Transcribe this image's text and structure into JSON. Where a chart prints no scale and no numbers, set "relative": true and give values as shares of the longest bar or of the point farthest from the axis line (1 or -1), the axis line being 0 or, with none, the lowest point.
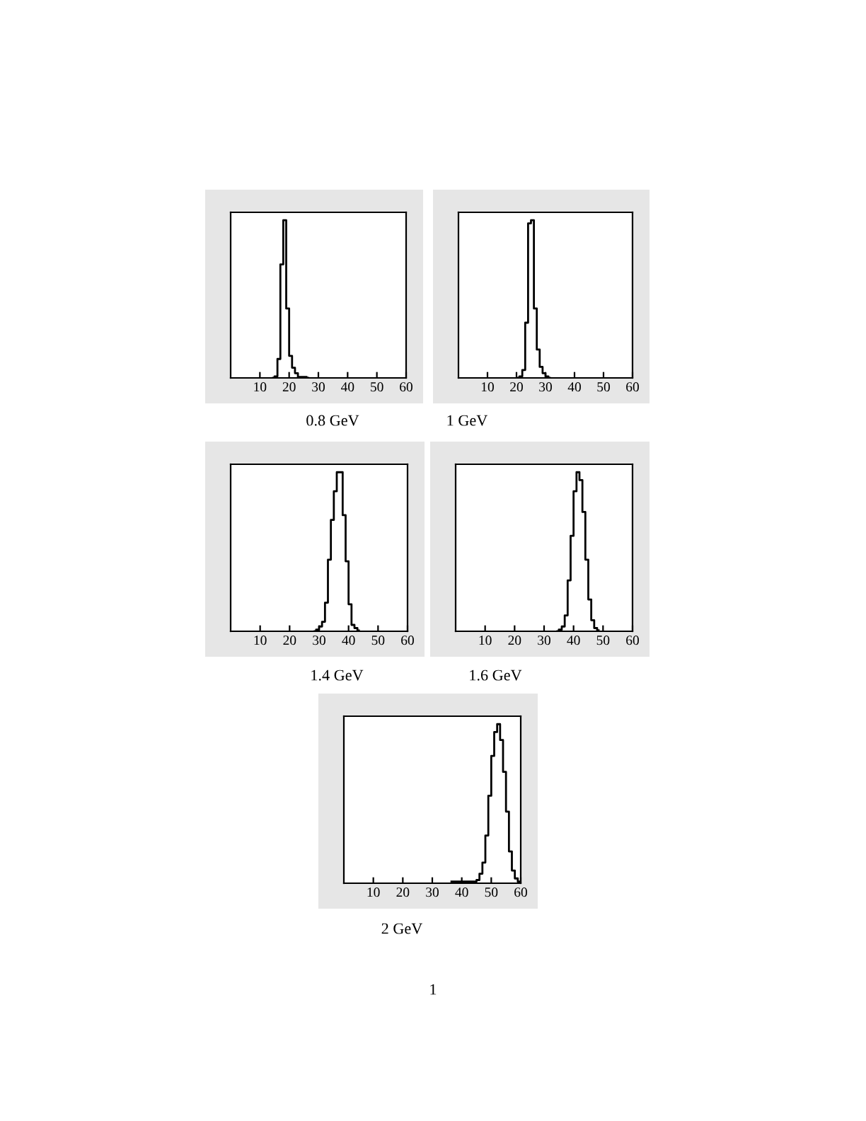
{
  "chart_data": [
    {
      "type": "step",
      "relative": true,
      "xlim": [
        0,
        60
      ],
      "xticks": [
        10,
        20,
        30,
        40,
        50,
        60
      ],
      "color": "#000000",
      "annotations": [
        "0.8 GeV"
      ],
      "x": [
        14.5,
        15.5,
        16.5,
        17.5,
        18.5,
        19.5,
        20.5,
        21.5,
        22.5,
        23.5,
        24.5,
        25.5,
        26.5
      ],
      "values": [
        0.0,
        0.01,
        0.12,
        0.72,
        1.0,
        0.44,
        0.14,
        0.065,
        0.03,
        0.006,
        0.006,
        0.006,
        0.0
      ]
    },
    {
      "type": "step",
      "relative": true,
      "xlim": [
        0,
        60
      ],
      "xticks": [
        10,
        20,
        30,
        40,
        50,
        60
      ],
      "color": "#000000",
      "annotations": [
        "1 GeV"
      ],
      "x": [
        20.5,
        21.5,
        22.5,
        23.5,
        24.5,
        25.5,
        26.5,
        27.5,
        28.5,
        29.5,
        30.5,
        31.5
      ],
      "values": [
        0.0,
        0.01,
        0.05,
        0.35,
        0.98,
        1.0,
        0.44,
        0.18,
        0.07,
        0.03,
        0.01,
        0.0
      ]
    },
    {
      "type": "step",
      "relative": true,
      "xlim": [
        0,
        60
      ],
      "xticks": [
        10,
        20,
        30,
        40,
        50,
        60
      ],
      "color": "#000000",
      "annotations": [
        "1.4 GeV"
      ],
      "x": [
        28.5,
        29.5,
        30.5,
        31.5,
        32.5,
        33.5,
        34.5,
        35.5,
        36.5,
        37.5,
        38.5,
        39.5,
        40.5,
        41.5,
        42.5,
        43.5
      ],
      "values": [
        0.0,
        0.01,
        0.03,
        0.06,
        0.18,
        0.45,
        0.7,
        0.88,
        1.0,
        1.0,
        0.73,
        0.44,
        0.17,
        0.04,
        0.02,
        0.005
      ]
    },
    {
      "type": "step",
      "relative": true,
      "xlim": [
        0,
        60
      ],
      "xticks": [
        10,
        20,
        30,
        40,
        50,
        60
      ],
      "color": "#000000",
      "annotations": [
        "1.6 GeV"
      ],
      "x": [
        34.5,
        35.5,
        36.5,
        37.5,
        38.5,
        39.5,
        40.5,
        41.5,
        42.5,
        43.5,
        44.5,
        45.5,
        46.5,
        47.5,
        48.5
      ],
      "values": [
        0.0,
        0.01,
        0.03,
        0.1,
        0.32,
        0.6,
        0.88,
        1.0,
        0.95,
        0.75,
        0.45,
        0.2,
        0.07,
        0.02,
        0.006
      ]
    },
    {
      "type": "step",
      "relative": true,
      "xlim": [
        0,
        60
      ],
      "xticks": [
        10,
        20,
        30,
        40,
        50,
        60
      ],
      "color": "#000000",
      "annotations": [
        "2 GeV",
        "1"
      ],
      "x": [
        36.5,
        37.5,
        38.5,
        39.5,
        40.5,
        41.5,
        42.5,
        43.5,
        44.5,
        45.5,
        46.5,
        47.5,
        48.5,
        49.5,
        50.5,
        51.5,
        52.5,
        53.5,
        54.5,
        55.5,
        56.5,
        57.5,
        58.5,
        59.5
      ],
      "values": [
        0.01,
        0.01,
        0.01,
        0.01,
        0.01,
        0.01,
        0.01,
        0.01,
        0.01,
        0.02,
        0.06,
        0.13,
        0.3,
        0.55,
        0.8,
        0.95,
        1.0,
        0.9,
        0.7,
        0.45,
        0.2,
        0.08,
        0.03,
        0.01
      ]
    }
  ]
}
